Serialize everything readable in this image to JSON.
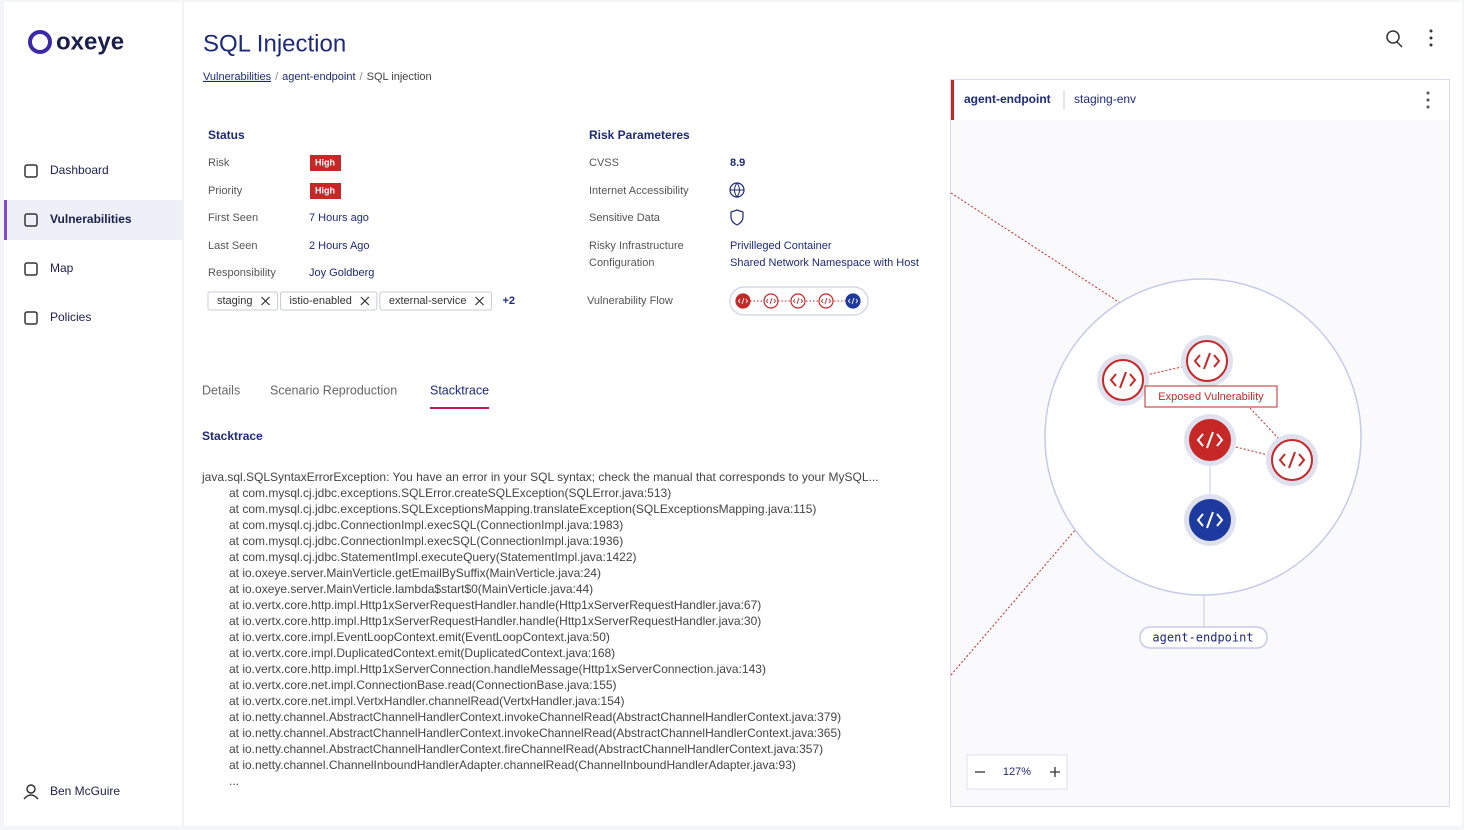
{
  "sidebar": {
    "logo": "oxeye",
    "nav": [
      "Dashboard",
      "Vulnerabilities",
      "Map",
      "Policies"
    ],
    "active": 1,
    "user": "Ben McGuire"
  },
  "header": {
    "title": "SQL Injection",
    "breadcrumb": [
      "Vulnerabilities",
      "agent-endpoint",
      "SQL injection"
    ],
    "separator": "/"
  },
  "status": {
    "heading": "Status",
    "rows": [
      {
        "label": "Risk",
        "value": "High"
      },
      {
        "label": "Priority",
        "value": "High"
      },
      {
        "label": "First Seen",
        "value": "7 Hours ago"
      },
      {
        "label": "Last Seen",
        "value": "2 Hours Ago"
      },
      {
        "label": "Responsibility",
        "value": "Joy Goldberg"
      }
    ],
    "tags": [
      "staging",
      "istio-enabled",
      "external-service"
    ],
    "more": "+2"
  },
  "risk": {
    "heading": "Risk Parameteres",
    "cvss": {
      "label": "CVSS",
      "value": "8.9"
    },
    "internet": {
      "label": "Internet Accessibility"
    },
    "sensitive": {
      "label": "Sensitive Data"
    },
    "infra": {
      "label": "Risky Infrastructure",
      "label2": "Configuration",
      "values": [
        "Privilleged Container",
        "Shared Network Namespace with Host"
      ]
    },
    "flow": {
      "label": "Vulnerability Flow"
    }
  },
  "tabs": {
    "items": [
      "Details",
      "Scenario Reproduction",
      "Stacktrace"
    ],
    "active": 2
  },
  "stacktrace": {
    "heading": "Stacktrace",
    "lines": [
      "java.sql.SQLSyntaxErrorException: You have an error in your SQL syntax; check the manual that corresponds to your MySQL...",
      "at com.mysql.cj.jdbc.exceptions.SQLError.createSQLException(SQLError.java:513)",
      "at com.mysql.cj.jdbc.exceptions.SQLExceptionsMapping.translateException(SQLExceptionsMapping.java:115)",
      "at com.mysql.cj.jdbc.ConnectionImpl.execSQL(ConnectionImpl.java:1983)",
      "at com.mysql.cj.jdbc.ConnectionImpl.execSQL(ConnectionImpl.java:1936)",
      "at com.mysql.cj.jdbc.StatementImpl.executeQuery(StatementImpl.java:1422)",
      "at io.oxeye.server.MainVerticle.getEmailBySuffix(MainVerticle.java:24)",
      "at io.oxeye.server.MainVerticle.lambda$start$0(MainVerticle.java:44)",
      "at io.vertx.core.http.impl.Http1xServerRequestHandler.handle(Http1xServerRequestHandler.java:67)",
      "at io.vertx.core.http.impl.Http1xServerRequestHandler.handle(Http1xServerRequestHandler.java:30)",
      "at io.vertx.core.impl.EventLoopContext.emit(EventLoopContext.java:50)",
      "at io.vertx.core.impl.DuplicatedContext.emit(DuplicatedContext.java:168)",
      "at io.vertx.core.http.impl.Http1xServerConnection.handleMessage(Http1xServerConnection.java:143)",
      "at io.vertx.core.net.impl.ConnectionBase.read(ConnectionBase.java:155)",
      "at io.vertx.core.net.impl.VertxHandler.channelRead(VertxHandler.java:154)",
      "at io.netty.channel.AbstractChannelHandlerContext.invokeChannelRead(AbstractChannelHandlerContext.java:379)",
      "at io.netty.channel.AbstractChannelHandlerContext.invokeChannelRead(AbstractChannelHandlerContext.java:365)",
      "at io.netty.channel.AbstractChannelHandlerContext.fireChannelRead(AbstractChannelHandlerContext.java:357)",
      "at io.netty.channel.ChannelInboundHandlerAdapter.channelRead(ChannelInboundHandlerAdapter.java:93)",
      "..."
    ]
  },
  "graph": {
    "service": "agent-endpoint",
    "env": "staging-env",
    "tooltip": "Exposed Vulnerability",
    "node_label": "agent-endpoint",
    "zoom": "127%"
  }
}
